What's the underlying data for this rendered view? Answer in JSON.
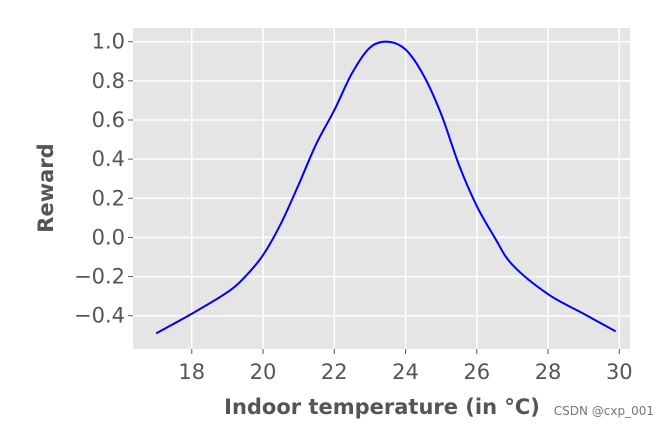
{
  "chart_data": {
    "type": "line",
    "xlabel": "Indoor temperature (in °C)",
    "ylabel": "Reward",
    "xlim": [
      16.35,
      30.3
    ],
    "ylim": [
      -0.57,
      1.07
    ],
    "x_ticks": [
      18,
      20,
      22,
      24,
      26,
      28,
      30
    ],
    "y_ticks": [
      1.0,
      0.8,
      0.6,
      0.4,
      0.2,
      0.0,
      -0.2,
      -0.4
    ],
    "x_tick_labels": [
      "18",
      "20",
      "22",
      "24",
      "26",
      "28",
      "30"
    ],
    "y_tick_labels": [
      "1.0",
      "0.8",
      "0.6",
      "0.4",
      "0.2",
      "0.0",
      "−0.2",
      "−0.4"
    ],
    "grid": true,
    "background_color": "#e5e5e5",
    "grid_color": "#ffffff",
    "series": [
      {
        "color": "#0000ff",
        "x": [
          17.0,
          18.0,
          19.0,
          19.5,
          20.0,
          20.5,
          21.0,
          21.5,
          22.0,
          22.5,
          23.0,
          23.5,
          24.0,
          24.5,
          25.0,
          25.5,
          26.0,
          26.5,
          27.0,
          28.0,
          29.0,
          29.9
        ],
        "y": [
          -0.49,
          -0.39,
          -0.28,
          -0.2,
          -0.09,
          0.07,
          0.27,
          0.48,
          0.65,
          0.84,
          0.97,
          1.0,
          0.96,
          0.83,
          0.63,
          0.37,
          0.16,
          0.0,
          -0.14,
          -0.29,
          -0.39,
          -0.48
        ]
      }
    ]
  },
  "watermark": "CSDN @cxp_001"
}
